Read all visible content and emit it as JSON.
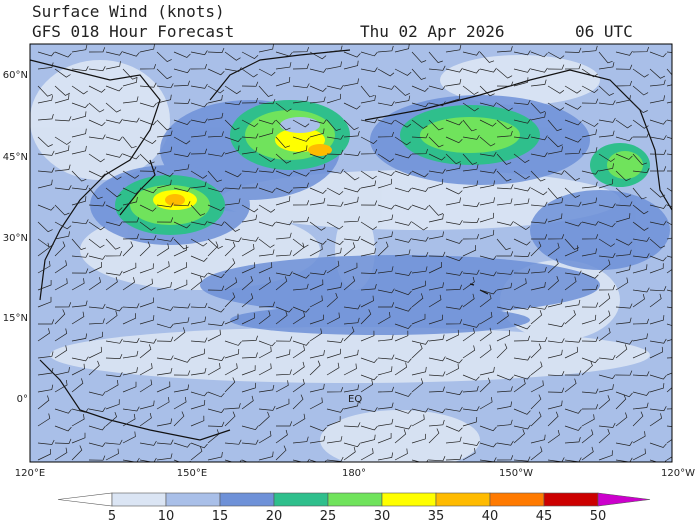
{
  "header": {
    "title": "Surface Wind (knots)",
    "subtitle": "GFS 018 Hour Forecast",
    "date": "Thu 02 Apr 2026",
    "time": "06 UTC"
  },
  "map": {
    "lat_labels": [
      "60°N",
      "45°N",
      "30°N",
      "15°N",
      "0°"
    ],
    "lon_labels": [
      "120°E",
      "150°E",
      "180°",
      "150°W",
      "120°W"
    ],
    "equator_label": "EQ"
  },
  "colorbar": {
    "ticks": [
      5,
      10,
      15,
      20,
      25,
      30,
      35,
      40,
      45,
      50
    ],
    "colors": [
      "#ffffff",
      "#dbe5f4",
      "#a9bfe8",
      "#6e91d8",
      "#2fbf8c",
      "#70e35c",
      "#ffff00",
      "#ffbb00",
      "#ff7a00",
      "#cc0000",
      "#cc00cc"
    ]
  }
}
